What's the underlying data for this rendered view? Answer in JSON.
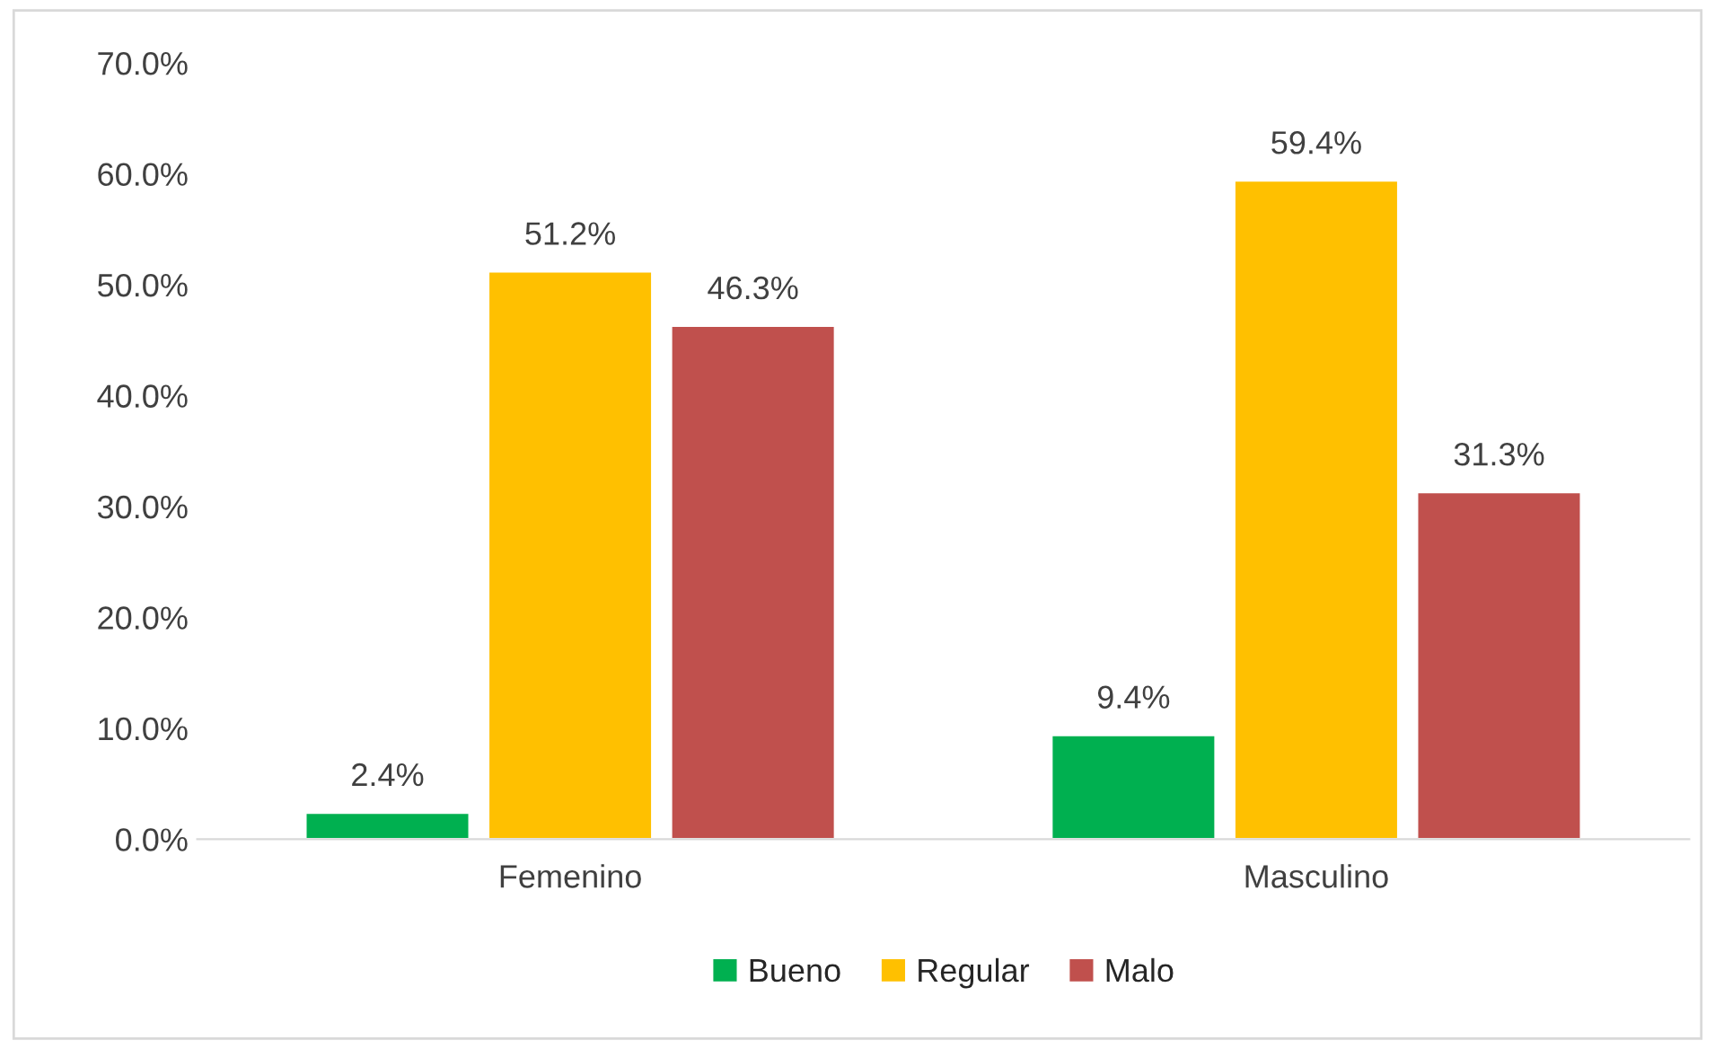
{
  "chart_data": {
    "type": "bar",
    "categories": [
      "Femenino",
      "Masculino"
    ],
    "series": [
      {
        "name": "Bueno",
        "color": "#00b050",
        "values": [
          2.4,
          9.4
        ],
        "value_labels": [
          "2.4%",
          "9.4%"
        ]
      },
      {
        "name": "Regular",
        "color": "#ffc000",
        "values": [
          51.2,
          59.4
        ],
        "value_labels": [
          "51.2%",
          "59.4%"
        ]
      },
      {
        "name": "Malo",
        "color": "#c0504d",
        "values": [
          46.3,
          31.3
        ],
        "value_labels": [
          "46.3%",
          "31.3%"
        ]
      }
    ],
    "ylim": [
      0,
      70
    ],
    "yticks": [
      {
        "value": 0,
        "label": "0.0%"
      },
      {
        "value": 10,
        "label": "10.0%"
      },
      {
        "value": 20,
        "label": "20.0%"
      },
      {
        "value": 30,
        "label": "30.0%"
      },
      {
        "value": 40,
        "label": "40.0%"
      },
      {
        "value": 50,
        "label": "50.0%"
      },
      {
        "value": 60,
        "label": "60.0%"
      },
      {
        "value": 70,
        "label": "70.0%"
      }
    ],
    "grid": false,
    "legend": "bottom"
  }
}
